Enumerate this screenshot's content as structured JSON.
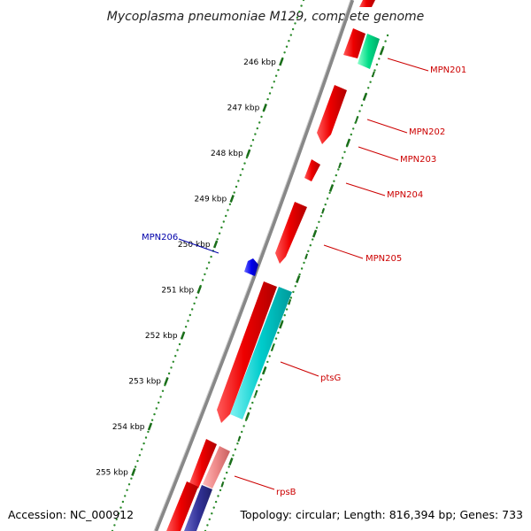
{
  "map": {
    "title": "Mycoplasma pneumoniae M129, complete genome",
    "accession": "Accession: NC_000912",
    "summary": "Topology: circular; Length: 816,394 bp; Genes: 733"
  },
  "colors": {
    "forward_gene": "#ee0000",
    "reverse_gene": "#0000ee",
    "forward_label": "#cc0000",
    "reverse_label": "#0000aa",
    "ptsG_feature": "#00cccc",
    "mpn201_feature": "#00dd88",
    "rpsB_feature": "#ee8888",
    "rpsB_lower_feature": "#333399",
    "tick_dot": "#2a8a2a",
    "tick_mark": "#1a6e1a",
    "backbone": "#888888"
  },
  "ticks": [
    {
      "label": "246 kbp"
    },
    {
      "label": "247 kbp"
    },
    {
      "label": "248 kbp"
    },
    {
      "label": "249 kbp"
    },
    {
      "label": "250 kbp"
    },
    {
      "label": "251 kbp"
    },
    {
      "label": "252 kbp"
    },
    {
      "label": "253 kbp"
    },
    {
      "label": "254 kbp"
    },
    {
      "label": "255 kbp"
    }
  ],
  "genes": [
    {
      "label": "MPN201",
      "strand": "forward"
    },
    {
      "label": "MPN202",
      "strand": "forward"
    },
    {
      "label": "MPN203",
      "strand": "forward"
    },
    {
      "label": "MPN204",
      "strand": "forward"
    },
    {
      "label": "MPN205",
      "strand": "forward"
    },
    {
      "label": "MPN206",
      "strand": "reverse"
    },
    {
      "label": "ptsG",
      "strand": "forward"
    },
    {
      "label": "rpsB",
      "strand": "forward"
    }
  ]
}
